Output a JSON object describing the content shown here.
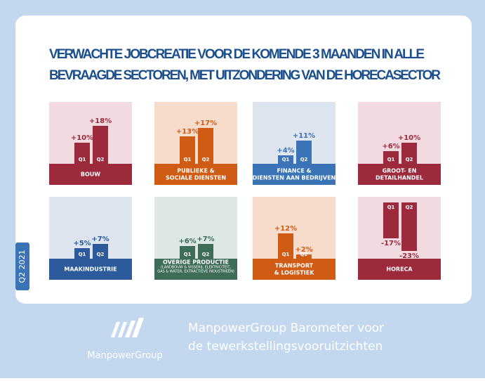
{
  "header": {
    "title": [
      "VERWACHTE JOBCREATIE VOOR DE KOMENDE 3 MAANDEN IN ALLE",
      "BEVRAAGDE SECTOREN, MET UITZONDERING VAN DE HORECASECTOR"
    ]
  },
  "side_label": "Q2 2021",
  "chart_data": [
    {
      "type": "bar",
      "title": [
        "BOUW"
      ],
      "categories": [
        "Q1",
        "Q2"
      ],
      "values": [
        10,
        18
      ],
      "value_labels": [
        "+10%",
        "+18%"
      ],
      "color": "#9c2a3c"
    },
    {
      "type": "bar",
      "title": [
        "PUBLIEKE &",
        "SOCIALE DIENSTEN"
      ],
      "categories": [
        "Q1",
        "Q2"
      ],
      "values": [
        13,
        17
      ],
      "value_labels": [
        "+13%",
        "+17%"
      ],
      "color": "#cf5b14"
    },
    {
      "type": "bar",
      "title": [
        "FINANCE &",
        "DIENSTEN AAN BEDRIJVEN"
      ],
      "categories": [
        "Q1",
        "Q2"
      ],
      "values": [
        4,
        11
      ],
      "value_labels": [
        "+4%",
        "+11%"
      ],
      "color": "#3b74b6"
    },
    {
      "type": "bar",
      "title": [
        "GROOT- EN",
        "DETAILHANDEL"
      ],
      "categories": [
        "Q1",
        "Q2"
      ],
      "values": [
        6,
        10
      ],
      "value_labels": [
        "+6%",
        "+10%"
      ],
      "color": "#9c2a3c"
    },
    {
      "type": "bar",
      "title": [
        "MAAKINDUSTRIE"
      ],
      "categories": [
        "Q1",
        "Q2"
      ],
      "values": [
        5,
        7
      ],
      "value_labels": [
        "+5%",
        "+7%"
      ],
      "color": "#2c5a9b"
    },
    {
      "type": "bar",
      "title": [
        "OVERIGE PRODUCTIE"
      ],
      "subtitle": [
        "(LANDBOUW & VISSERIJ, ELEKTRICITEIT,",
        "GAS & WATER, EXTRACTIEVE INDUSTRIEËN)"
      ],
      "categories": [
        "Q1",
        "Q2"
      ],
      "values": [
        6,
        7
      ],
      "value_labels": [
        "+6%",
        "+7%"
      ],
      "color": "#3d6c57"
    },
    {
      "type": "bar",
      "title": [
        "TRANSPORT",
        "& LOGISTIEK"
      ],
      "categories": [
        "Q1",
        "Q2"
      ],
      "values": [
        12,
        2
      ],
      "value_labels": [
        "+12%",
        "+2%"
      ],
      "color": "#cf5b14"
    },
    {
      "type": "bar",
      "title": [
        "HORECA"
      ],
      "categories": [
        "Q1",
        "Q2"
      ],
      "values": [
        -17,
        -23
      ],
      "value_labels": [
        "-17%",
        "-23%"
      ],
      "color": "#9c2a3c"
    }
  ],
  "footer": {
    "logo": "ManpowerGroup",
    "title": [
      "ManpowerGroup Barometer voor",
      "de tewerkstellingsvooruitzichten"
    ]
  }
}
